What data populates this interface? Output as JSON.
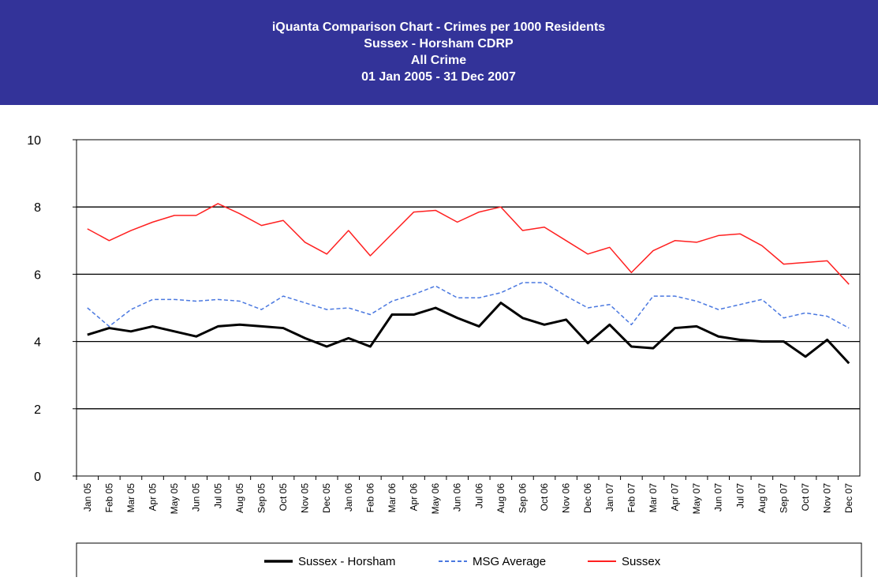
{
  "chart_data": {
    "type": "line",
    "title": "iQuanta Comparison Chart - Crimes per 1000 Residents",
    "subtitle": [
      "Sussex - Horsham CDRP",
      "All Crime",
      "01 Jan 2005 - 31 Dec 2007"
    ],
    "categories": [
      "Jan 05",
      "Feb 05",
      "Mar 05",
      "Apr 05",
      "May 05",
      "Jun 05",
      "Jul 05",
      "Aug 05",
      "Sep 05",
      "Oct 05",
      "Nov 05",
      "Dec 05",
      "Jan 06",
      "Feb 06",
      "Mar 06",
      "Apr 06",
      "May 06",
      "Jun 06",
      "Jul 06",
      "Aug 06",
      "Sep 06",
      "Oct 06",
      "Nov 06",
      "Dec 06",
      "Jan 07",
      "Feb 07",
      "Mar 07",
      "Apr 07",
      "May 07",
      "Jun 07",
      "Jul 07",
      "Aug 07",
      "Sep 07",
      "Oct 07",
      "Nov 07",
      "Dec 07"
    ],
    "series": [
      {
        "name": "Sussex - Horsham",
        "color": "#000000",
        "dash": false,
        "width": 3,
        "values": [
          4.2,
          4.4,
          4.3,
          4.45,
          4.3,
          4.15,
          4.45,
          4.5,
          4.45,
          4.4,
          4.1,
          3.85,
          4.1,
          3.85,
          4.8,
          4.8,
          5.0,
          4.7,
          4.45,
          5.15,
          4.7,
          4.5,
          4.65,
          3.95,
          4.5,
          3.85,
          3.8,
          4.4,
          4.45,
          4.15,
          4.05,
          4.0,
          4.0,
          3.55,
          4.05,
          3.35
        ]
      },
      {
        "name": "MSG Average",
        "color": "#4a78e0",
        "dash": true,
        "width": 1.5,
        "values": [
          5.0,
          4.45,
          4.95,
          5.25,
          5.25,
          5.2,
          5.25,
          5.2,
          4.95,
          5.35,
          5.15,
          4.95,
          5.0,
          4.8,
          5.2,
          5.4,
          5.65,
          5.3,
          5.3,
          5.45,
          5.75,
          5.75,
          5.35,
          5.0,
          5.1,
          4.5,
          5.35,
          5.35,
          5.2,
          4.95,
          5.1,
          5.25,
          4.7,
          4.85,
          4.75,
          4.4
        ]
      },
      {
        "name": "Sussex",
        "color": "#ff2020",
        "dash": false,
        "width": 1.5,
        "values": [
          7.35,
          7.0,
          7.3,
          7.55,
          7.75,
          7.75,
          8.1,
          7.8,
          7.45,
          7.6,
          6.95,
          6.6,
          7.3,
          6.55,
          7.2,
          7.85,
          7.9,
          7.55,
          7.85,
          8.0,
          7.3,
          7.4,
          7.0,
          6.6,
          6.8,
          6.05,
          6.7,
          7.0,
          6.95,
          7.15,
          7.2,
          6.85,
          6.3,
          6.35,
          6.4,
          5.7
        ]
      }
    ],
    "ylim": [
      0,
      10
    ],
    "yticks": [
      0,
      2,
      4,
      6,
      8,
      10
    ],
    "grid": true,
    "legend": "bottom"
  }
}
